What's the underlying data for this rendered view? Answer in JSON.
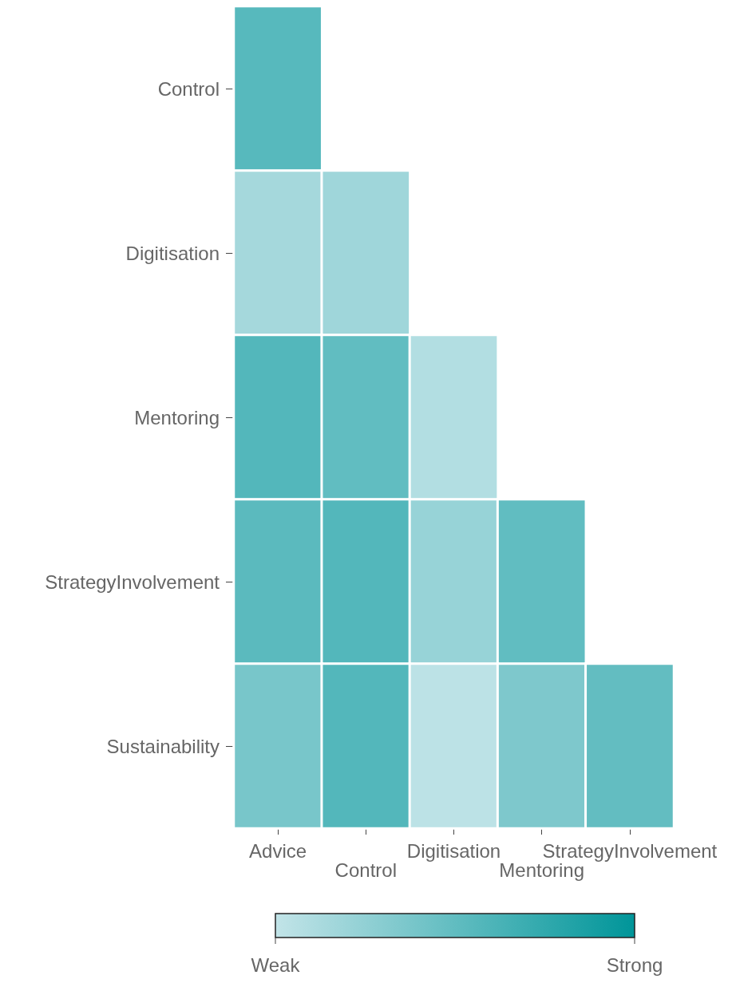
{
  "chart_data": {
    "type": "heatmap",
    "categories": [
      "Advice",
      "Control",
      "Digitisation",
      "Mentoring",
      "StrategyInvolvement"
    ],
    "y_categories": [
      "Control",
      "Digitisation",
      "Mentoring",
      "StrategyInvolvement",
      "Sustainability"
    ],
    "cells": [
      [
        0.55,
        null,
        null,
        null,
        null
      ],
      [
        0.15,
        0.18,
        null,
        null,
        null
      ],
      [
        0.57,
        0.5,
        0.08,
        null,
        null
      ],
      [
        0.53,
        0.57,
        0.22,
        0.5,
        null
      ],
      [
        0.38,
        0.57,
        0.03,
        0.35,
        0.49
      ]
    ],
    "clim": [
      0,
      1
    ],
    "cticks": [
      {
        "value": 0,
        "label": "Weak"
      },
      {
        "value": 1,
        "label": "Strong"
      }
    ]
  }
}
